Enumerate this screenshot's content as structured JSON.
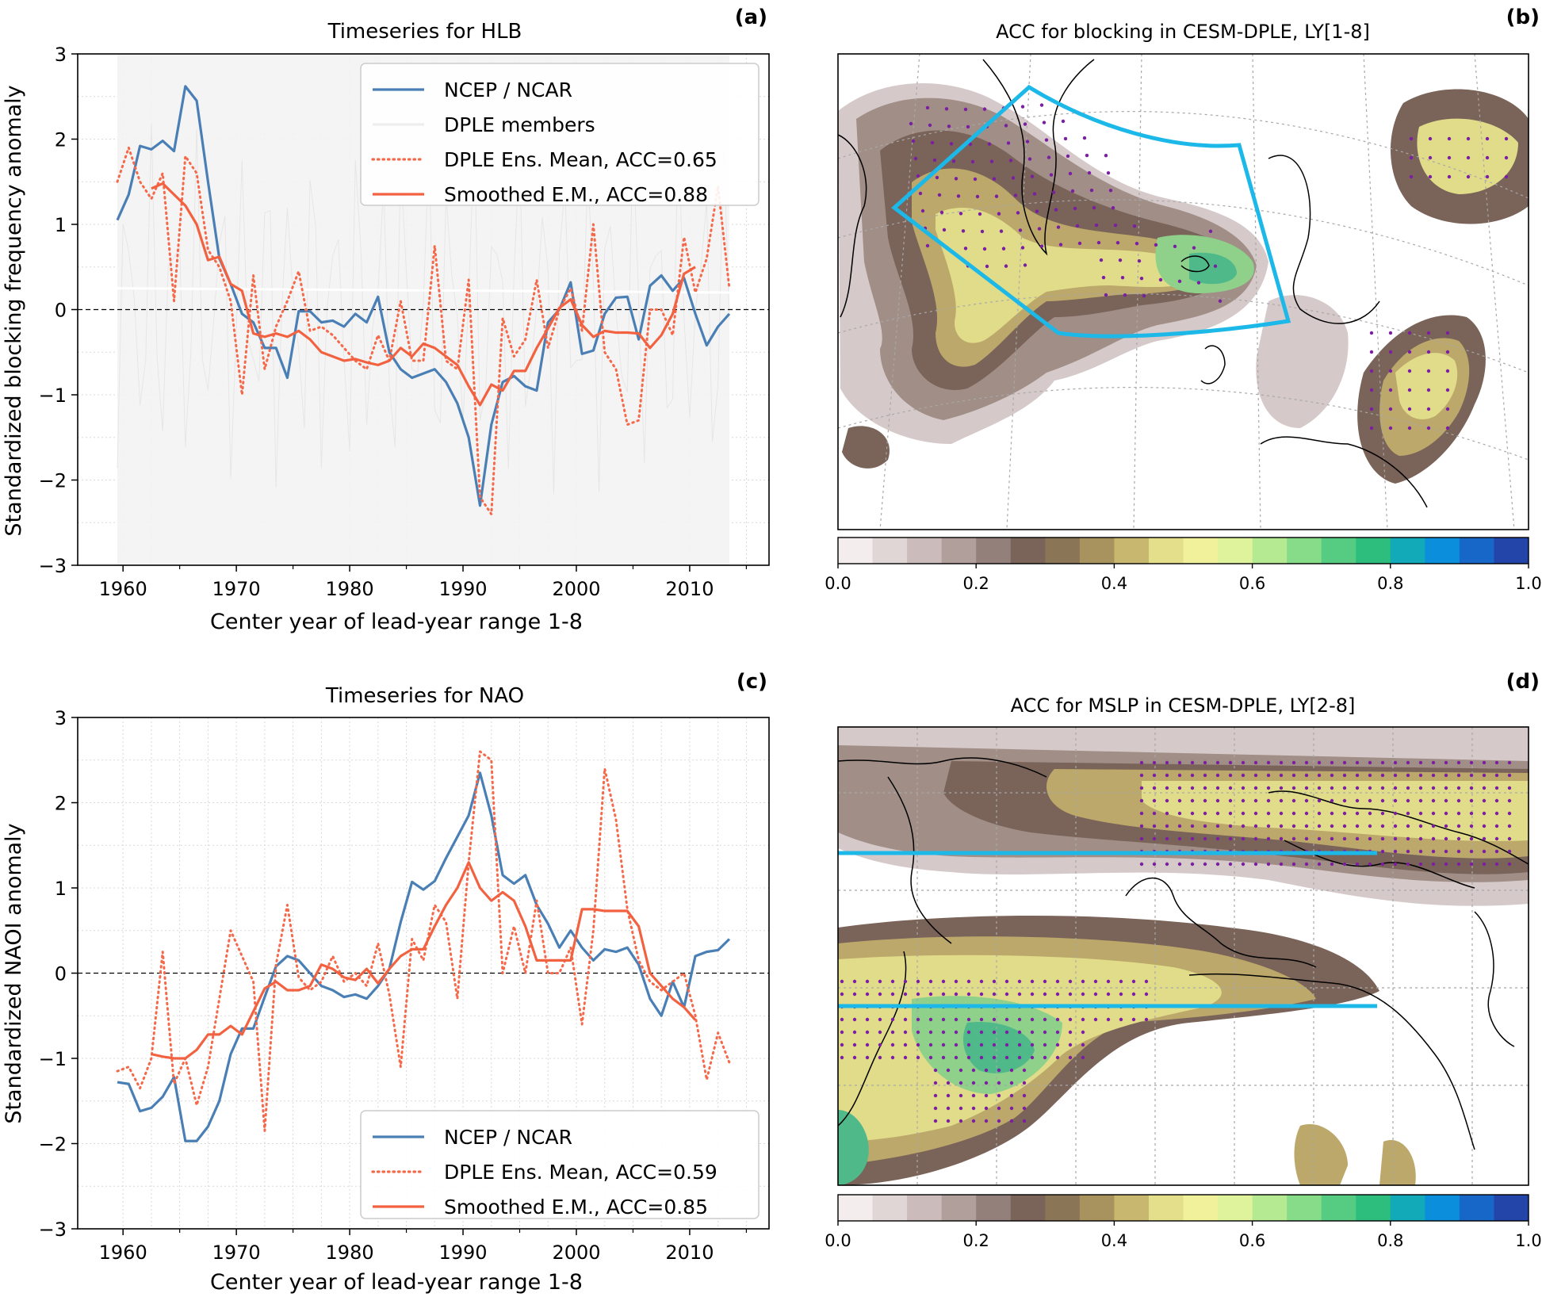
{
  "panels": {
    "a": {
      "letter": "(a)",
      "title": "Timeseries for HLB"
    },
    "b": {
      "letter": "(b)",
      "title": "ACC for blocking in CESM-DPLE, LY[1-8]"
    },
    "c": {
      "letter": "(c)",
      "title": "Timeseries for NAO"
    },
    "d": {
      "letter": "(d)",
      "title": "ACC for MSLP in CESM-DPLE, LY[2-8]"
    }
  },
  "colors": {
    "ncep": "#4a7fb5",
    "dple": "#f5694a",
    "smoothed": "#f26240",
    "members": "#eeeeee",
    "region": "#1cb8e8",
    "stipple": "#7b1fa2"
  },
  "chart_data": [
    {
      "id": "a",
      "type": "line",
      "title": "Timeseries for HLB",
      "xlabel": "Center year of lead-year range 1-8",
      "ylabel": "Standardized blocking frequency anomaly",
      "xlim": [
        1956,
        2017
      ],
      "ylim": [
        -3,
        3
      ],
      "xticks": [
        1960,
        1970,
        1980,
        1990,
        2000,
        2010
      ],
      "yticks": [
        -3,
        -2,
        -1,
        0,
        1,
        2,
        3
      ],
      "legend_position": "top-right",
      "grid": true,
      "zero_line": true,
      "series": [
        {
          "name": "NCEP / NCAR",
          "style": "solid",
          "color": "#4a7fb5",
          "x": [
            1959.5,
            1960.5,
            1961.5,
            1962.5,
            1963.5,
            1964.5,
            1965.5,
            1966.5,
            1967.5,
            1968.5,
            1969.5,
            1970.5,
            1971.5,
            1972.5,
            1973.5,
            1974.5,
            1975.5,
            1976.5,
            1977.5,
            1978.5,
            1979.5,
            1980.5,
            1981.5,
            1982.5,
            1983.5,
            1984.5,
            1985.5,
            1986.5,
            1987.5,
            1988.5,
            1989.5,
            1990.5,
            1991.5,
            1992.5,
            1993.5,
            1994.5,
            1995.5,
            1996.5,
            1997.5,
            1998.5,
            1999.5,
            2000.5,
            2001.5,
            2002.5,
            2003.5,
            2004.5,
            2005.5,
            2006.5,
            2007.5,
            2008.5,
            2009.5,
            2010.5,
            2011.5,
            2012.5,
            2013.5
          ],
          "y": [
            1.05,
            1.35,
            1.92,
            1.88,
            1.98,
            1.86,
            2.62,
            2.45,
            1.5,
            0.6,
            0.3,
            -0.05,
            -0.15,
            -0.45,
            -0.45,
            -0.8,
            -0.02,
            -0.02,
            -0.15,
            -0.13,
            -0.2,
            -0.05,
            -0.15,
            0.15,
            -0.5,
            -0.7,
            -0.8,
            -0.75,
            -0.7,
            -0.85,
            -1.1,
            -1.5,
            -2.3,
            -1.35,
            -0.85,
            -0.78,
            -0.9,
            -0.95,
            -0.15,
            0.0,
            0.32,
            -0.52,
            -0.48,
            -0.05,
            0.14,
            0.15,
            -0.35,
            0.28,
            0.4,
            0.22,
            0.37,
            -0.05,
            -0.42,
            -0.2,
            -0.05
          ]
        },
        {
          "name": "DPLE members",
          "style": "band",
          "color": "#eeeeee",
          "x": [
            1959.5,
            2013.5
          ],
          "y": [
            0.25,
            0.2
          ]
        },
        {
          "name": "DPLE Ens. Mean, ACC=0.65",
          "style": "dotted",
          "color": "#f5694a",
          "x": [
            1959.5,
            1960.5,
            1961.5,
            1962.5,
            1963.5,
            1964.5,
            1965.5,
            1966.5,
            1967.5,
            1968.5,
            1969.5,
            1970.5,
            1971.5,
            1972.5,
            1973.5,
            1974.5,
            1975.5,
            1976.5,
            1977.5,
            1978.5,
            1979.5,
            1980.5,
            1981.5,
            1982.5,
            1983.5,
            1984.5,
            1985.5,
            1986.5,
            1987.5,
            1988.5,
            1989.5,
            1990.5,
            1991.5,
            1992.5,
            1993.5,
            1994.5,
            1995.5,
            1996.5,
            1997.5,
            1998.5,
            1999.5,
            2000.5,
            2001.5,
            2002.5,
            2003.5,
            2004.5,
            2005.5,
            2006.5,
            2007.5,
            2008.5,
            2009.5,
            2010.5,
            2011.5,
            2012.5,
            2013.5
          ],
          "y": [
            1.5,
            1.9,
            1.5,
            1.3,
            1.6,
            0.1,
            1.8,
            1.6,
            0.7,
            0.5,
            0.1,
            -1.0,
            0.4,
            -0.7,
            -0.2,
            0.1,
            0.45,
            -0.25,
            -0.2,
            -0.3,
            -0.45,
            -0.6,
            -0.7,
            -0.3,
            -0.6,
            0.1,
            -0.6,
            -0.6,
            0.75,
            -0.6,
            -0.7,
            0.35,
            -2.2,
            -2.4,
            -0.1,
            -0.55,
            -0.35,
            0.35,
            -0.45,
            0.0,
            0.25,
            -0.25,
            1.0,
            -0.5,
            -0.7,
            -1.35,
            -1.3,
            0.0,
            0.0,
            -0.3,
            0.85,
            0.2,
            0.6,
            1.45,
            0.25
          ]
        },
        {
          "name": "Smoothed E.M., ACC=0.88",
          "style": "solid",
          "color": "#f26240",
          "x": [
            1962.5,
            1963.5,
            1964.5,
            1965.5,
            1966.5,
            1967.5,
            1968.5,
            1969.5,
            1970.5,
            1971.5,
            1972.5,
            1973.5,
            1974.5,
            1975.5,
            1976.5,
            1977.5,
            1978.5,
            1979.5,
            1980.5,
            1981.5,
            1982.5,
            1983.5,
            1984.5,
            1985.5,
            1986.5,
            1987.5,
            1988.5,
            1989.5,
            1990.5,
            1991.5,
            1992.5,
            1993.5,
            1994.5,
            1995.5,
            1996.5,
            1997.5,
            1998.5,
            1999.5,
            2000.5,
            2001.5,
            2002.5,
            2003.5,
            2004.5,
            2005.5,
            2006.5,
            2007.5,
            2008.5,
            2009.5,
            2010.5
          ],
          "y": [
            1.42,
            1.48,
            1.35,
            1.22,
            1.0,
            0.58,
            0.62,
            0.3,
            0.22,
            -0.28,
            -0.32,
            -0.28,
            -0.32,
            -0.25,
            -0.35,
            -0.5,
            -0.55,
            -0.6,
            -0.58,
            -0.62,
            -0.65,
            -0.6,
            -0.45,
            -0.55,
            -0.4,
            -0.45,
            -0.55,
            -0.65,
            -0.9,
            -1.12,
            -0.88,
            -0.95,
            -0.72,
            -0.72,
            -0.45,
            -0.22,
            0.02,
            0.12,
            -0.18,
            -0.32,
            -0.25,
            -0.27,
            -0.27,
            -0.28,
            -0.45,
            -0.3,
            -0.05,
            0.42,
            0.5
          ]
        }
      ]
    },
    {
      "id": "c",
      "type": "line",
      "title": "Timeseries for NAO",
      "xlabel": "Center year of lead-year range 1-8",
      "ylabel": "Standardized NAOI anomaly",
      "xlim": [
        1956,
        2017
      ],
      "ylim": [
        -3,
        3
      ],
      "xticks": [
        1960,
        1970,
        1980,
        1990,
        2000,
        2010
      ],
      "yticks": [
        -3,
        -2,
        -1,
        0,
        1,
        2,
        3
      ],
      "legend_position": "bottom-right",
      "grid": true,
      "zero_line": true,
      "series": [
        {
          "name": "NCEP / NCAR",
          "style": "solid",
          "color": "#4a7fb5",
          "x": [
            1959.5,
            1960.5,
            1961.5,
            1962.5,
            1963.5,
            1964.5,
            1965.5,
            1966.5,
            1967.5,
            1968.5,
            1969.5,
            1970.5,
            1971.5,
            1972.5,
            1973.5,
            1974.5,
            1975.5,
            1976.5,
            1977.5,
            1978.5,
            1979.5,
            1980.5,
            1981.5,
            1982.5,
            1983.5,
            1984.5,
            1985.5,
            1986.5,
            1987.5,
            1988.5,
            1989.5,
            1990.5,
            1991.5,
            1992.5,
            1993.5,
            1994.5,
            1995.5,
            1996.5,
            1997.5,
            1998.5,
            1999.5,
            2000.5,
            2001.5,
            2002.5,
            2003.5,
            2004.5,
            2005.5,
            2006.5,
            2007.5,
            2008.5,
            2009.5,
            2010.5,
            2011.5,
            2012.5,
            2013.5
          ],
          "y": [
            -1.28,
            -1.3,
            -1.62,
            -1.58,
            -1.45,
            -1.22,
            -1.97,
            -1.97,
            -1.8,
            -1.5,
            -0.95,
            -0.65,
            -0.65,
            -0.28,
            0.08,
            0.2,
            0.15,
            0.0,
            -0.15,
            -0.2,
            -0.28,
            -0.25,
            -0.3,
            -0.15,
            0.05,
            0.6,
            1.07,
            0.98,
            1.08,
            1.35,
            1.6,
            1.85,
            2.35,
            1.85,
            1.15,
            1.05,
            1.15,
            0.8,
            0.58,
            0.3,
            0.5,
            0.3,
            0.15,
            0.28,
            0.25,
            0.3,
            0.1,
            -0.3,
            -0.5,
            -0.1,
            -0.4,
            0.2,
            0.25,
            0.27,
            0.4
          ]
        },
        {
          "name": "DPLE Ens. Mean, ACC=0.59",
          "style": "dotted",
          "color": "#f5694a",
          "x": [
            1959.5,
            1960.5,
            1961.5,
            1962.5,
            1963.5,
            1964.5,
            1965.5,
            1966.5,
            1967.5,
            1968.5,
            1969.5,
            1970.5,
            1971.5,
            1972.5,
            1973.5,
            1974.5,
            1975.5,
            1976.5,
            1977.5,
            1978.5,
            1979.5,
            1980.5,
            1981.5,
            1982.5,
            1983.5,
            1984.5,
            1985.5,
            1986.5,
            1987.5,
            1988.5,
            1989.5,
            1990.5,
            1991.5,
            1992.5,
            1993.5,
            1994.5,
            1995.5,
            1996.5,
            1997.5,
            1998.5,
            1999.5,
            2000.5,
            2001.5,
            2002.5,
            2003.5,
            2004.5,
            2005.5,
            2006.5,
            2007.5,
            2008.5,
            2009.5,
            2010.5,
            2011.5,
            2012.5,
            2013.5
          ],
          "y": [
            -1.15,
            -1.1,
            -1.35,
            -1.0,
            0.25,
            -1.3,
            -1.0,
            -1.55,
            -1.1,
            -0.3,
            0.5,
            0.2,
            -0.1,
            -1.85,
            0.1,
            0.8,
            -0.05,
            -0.2,
            -0.1,
            0.2,
            -0.1,
            0.0,
            -0.15,
            0.35,
            -0.25,
            -1.1,
            0.4,
            0.15,
            0.8,
            0.6,
            -0.3,
            1.3,
            2.6,
            2.5,
            0.0,
            0.55,
            0.0,
            0.85,
            0.0,
            0.0,
            0.3,
            -0.6,
            0.5,
            2.4,
            1.8,
            0.75,
            0.15,
            -0.1,
            -0.2,
            -0.1,
            0.0,
            -0.5,
            -1.25,
            -0.7,
            -1.05
          ]
        },
        {
          "name": "Smoothed E.M., ACC=0.85",
          "style": "solid",
          "color": "#f26240",
          "x": [
            1962.5,
            1963.5,
            1964.5,
            1965.5,
            1966.5,
            1967.5,
            1968.5,
            1969.5,
            1970.5,
            1971.5,
            1972.5,
            1973.5,
            1974.5,
            1975.5,
            1976.5,
            1977.5,
            1978.5,
            1979.5,
            1980.5,
            1981.5,
            1982.5,
            1983.5,
            1984.5,
            1985.5,
            1986.5,
            1987.5,
            1988.5,
            1989.5,
            1990.5,
            1991.5,
            1992.5,
            1993.5,
            1994.5,
            1995.5,
            1996.5,
            1997.5,
            1998.5,
            1999.5,
            2000.5,
            2001.5,
            2002.5,
            2003.5,
            2004.5,
            2005.5,
            2006.5,
            2007.5,
            2008.5,
            2009.5,
            2010.5
          ],
          "y": [
            -0.95,
            -0.98,
            -1.0,
            -1.0,
            -0.9,
            -0.72,
            -0.72,
            -0.62,
            -0.72,
            -0.45,
            -0.18,
            -0.1,
            -0.2,
            -0.2,
            -0.15,
            0.1,
            0.05,
            -0.05,
            -0.08,
            0.05,
            -0.12,
            0.05,
            0.2,
            0.28,
            0.28,
            0.55,
            0.8,
            1.0,
            1.3,
            1.0,
            0.85,
            0.95,
            0.85,
            0.55,
            0.15,
            0.15,
            0.15,
            0.15,
            0.75,
            0.75,
            0.73,
            0.73,
            0.73,
            0.55,
            0.0,
            -0.15,
            -0.3,
            -0.4,
            -0.55
          ]
        }
      ]
    },
    {
      "id": "b",
      "type": "heatmap",
      "title": "ACC for blocking in CESM-DPLE, LY[1-8]",
      "colorbar": {
        "min": 0.0,
        "max": 1.0,
        "step": 0.05,
        "ticks": [
          "0.0",
          "0.2",
          "0.4",
          "0.6",
          "0.8",
          "1.0"
        ]
      },
      "features": [
        "contour map",
        "stippling",
        "region box"
      ]
    },
    {
      "id": "d",
      "type": "heatmap",
      "title": "ACC for MSLP in CESM-DPLE, LY[2-8]",
      "colorbar": {
        "min": 0.0,
        "max": 1.0,
        "step": 0.05,
        "ticks": [
          "0.0",
          "0.2",
          "0.4",
          "0.6",
          "0.8",
          "1.0"
        ]
      },
      "features": [
        "contour map",
        "stippling",
        "two NAO latitude lines"
      ]
    }
  ]
}
